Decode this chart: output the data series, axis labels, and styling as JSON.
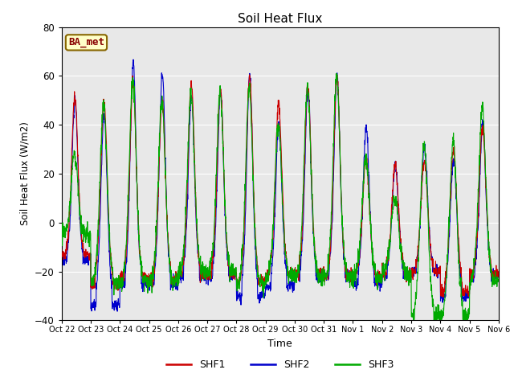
{
  "title": "Soil Heat Flux",
  "ylabel": "Soil Heat Flux (W/m2)",
  "xlabel": "Time",
  "ylim": [
    -40,
    80
  ],
  "yticks": [
    -40,
    -20,
    0,
    20,
    40,
    60,
    80
  ],
  "line_colors": {
    "SHF1": "#cc0000",
    "SHF2": "#0000cc",
    "SHF3": "#00aa00"
  },
  "annotation": "BA_met",
  "bg_color": "#e8e8e8",
  "fig_bg": "#ffffff",
  "xtick_labels": [
    "Oct 22",
    "Oct 23",
    "Oct 24",
    "Oct 25",
    "Oct 26",
    "Oct 27",
    "Oct 28",
    "Oct 29",
    "Oct 30",
    "Oct 31",
    "Nov 1",
    "Nov 2",
    "Nov 3",
    "Nov 4",
    "Nov 5",
    "Nov 6"
  ],
  "legend_entries": [
    "SHF1",
    "SHF2",
    "SHF3"
  ]
}
